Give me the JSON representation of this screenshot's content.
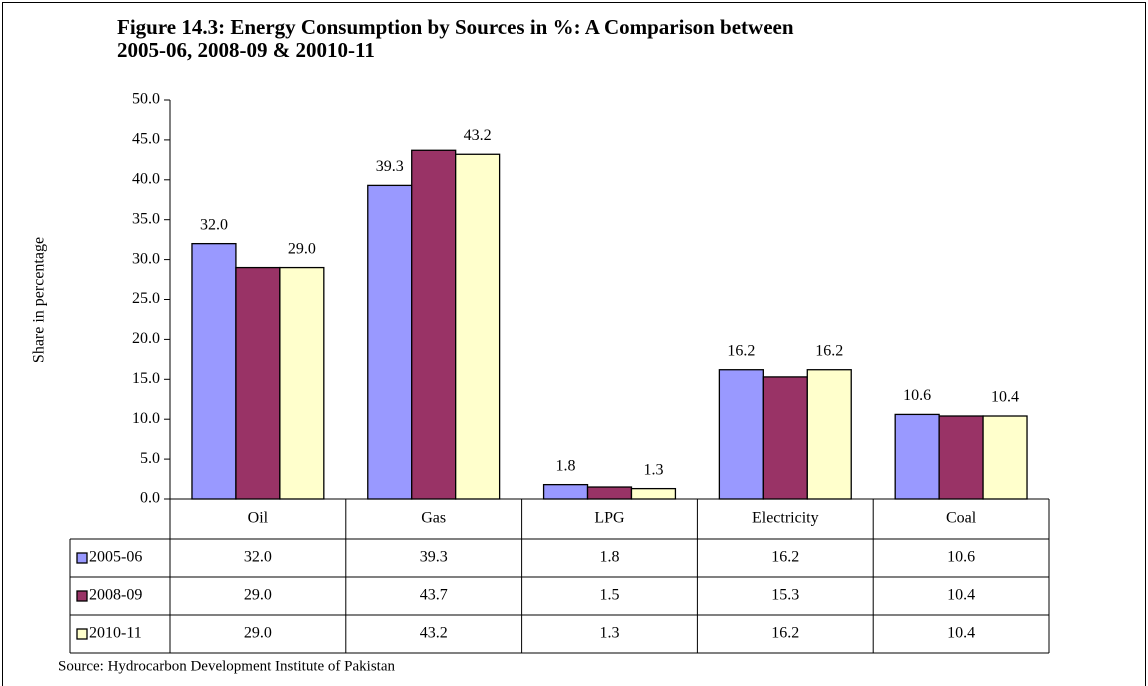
{
  "chart_data": {
    "type": "bar",
    "title": [
      "Figure 14.3: Energy Consumption by Sources in %: A Comparison between",
      "2005-06, 2008-09 & 20010-11"
    ],
    "y_label": "Share in percentage",
    "source": "Source: Hydrocarbon Development Institute of Pakistan",
    "categories": [
      "Oil",
      "Gas",
      "LPG",
      "Electricity",
      "Coal"
    ],
    "series": [
      {
        "name": "2005-06",
        "color": "#9999ff",
        "values": [
          32.0,
          39.3,
          1.8,
          16.2,
          10.6
        ],
        "value_labels": [
          "32.0",
          "39.3",
          "1.8",
          "16.2",
          "10.6"
        ],
        "show_labels": true
      },
      {
        "name": "2008-09",
        "color": "#993366",
        "values": [
          29.0,
          43.7,
          1.5,
          15.3,
          10.4
        ],
        "value_labels": [
          "29.0",
          "43.7",
          "1.5",
          "15.3",
          "10.4"
        ],
        "show_labels": false
      },
      {
        "name": "2010-11",
        "color": "#ffffcc",
        "values": [
          29.0,
          43.2,
          1.3,
          16.2,
          10.4
        ],
        "value_labels": [
          "29.0",
          "43.2",
          "1.3",
          "16.2",
          "10.4"
        ],
        "show_labels": true
      }
    ],
    "ylim": [
      0,
      50
    ],
    "yticks": [
      {
        "value": 0,
        "label": "0.0"
      },
      {
        "value": 5,
        "label": "5.0"
      },
      {
        "value": 10,
        "label": "10.0"
      },
      {
        "value": 15,
        "label": "15.0"
      },
      {
        "value": 20,
        "label": "20.0"
      },
      {
        "value": 25,
        "label": "25.0"
      },
      {
        "value": 30,
        "label": "30.0"
      },
      {
        "value": 35,
        "label": "35.0"
      },
      {
        "value": 40,
        "label": "40.0"
      },
      {
        "value": 45,
        "label": "45.0"
      },
      {
        "value": 50,
        "label": "50.0"
      }
    ],
    "grid": false,
    "data_table": true
  }
}
